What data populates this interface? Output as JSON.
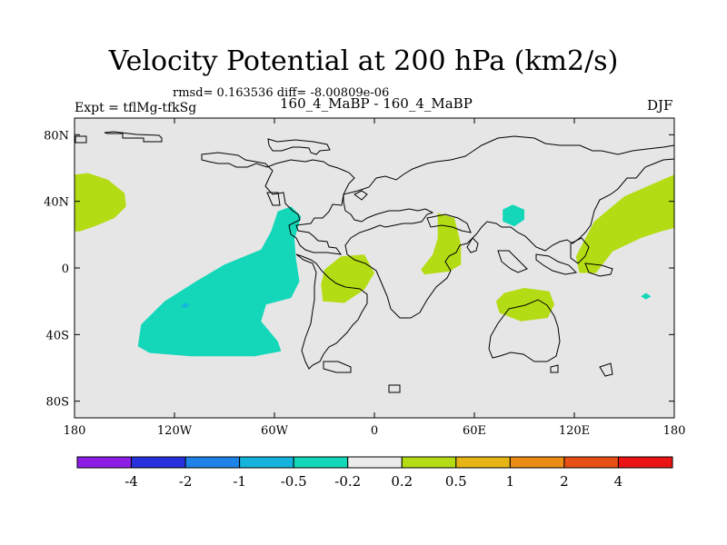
{
  "chart_data": {
    "type": "heatmap",
    "title": "Velocity Potential at 200 hPa (km2/s)",
    "stats_line": "rmsd= 0.163536 diff= -8.00809e-06",
    "left_label": "Expt = tflMg-tfkSg",
    "center_label": "160_4_MaBP - 160_4_MaBP",
    "right_label": "DJF",
    "xlim": [
      -180,
      180
    ],
    "ylim": [
      -90,
      90
    ],
    "x_ticks": [
      {
        "value": -180,
        "label": "180"
      },
      {
        "value": -120,
        "label": "120W"
      },
      {
        "value": -60,
        "label": "60W"
      },
      {
        "value": 0,
        "label": "0"
      },
      {
        "value": 60,
        "label": "60E"
      },
      {
        "value": 120,
        "label": "120E"
      },
      {
        "value": 180,
        "label": "180"
      }
    ],
    "y_ticks": [
      {
        "value": 80,
        "label": "80N"
      },
      {
        "value": 40,
        "label": "40N"
      },
      {
        "value": 0,
        "label": "0"
      },
      {
        "value": -40,
        "label": "40S"
      },
      {
        "value": -80,
        "label": "80S"
      }
    ],
    "background_color": "#e6e6e6",
    "colorbar": {
      "colors": [
        "#8c1ee6",
        "#2832dc",
        "#1e82e6",
        "#14b4dc",
        "#14d7b9",
        "#ebebeb",
        "#b4dc14",
        "#e6b414",
        "#eb8c14",
        "#e65014",
        "#eb1414"
      ],
      "labels": [
        "-4",
        "-2",
        "-1",
        "-0.5",
        "-0.2",
        "0.2",
        "0.5",
        "1",
        "2",
        "4"
      ]
    },
    "regions": [
      {
        "name": "positive-region-north-pacific-west",
        "level": "0.2 to 0.5",
        "color": "#b4dc14",
        "polygon": [
          [
            -180,
            56
          ],
          [
            -172,
            57
          ],
          [
            -160,
            53
          ],
          [
            -150,
            45
          ],
          [
            -149,
            37
          ],
          [
            -156,
            30
          ],
          [
            -168,
            25
          ],
          [
            -177,
            22
          ],
          [
            -180,
            22
          ]
        ]
      },
      {
        "name": "negative-region-south-pacific",
        "level": "-0.5 to -0.2",
        "color": "#14d7b9",
        "polygon": [
          [
            -58,
            34
          ],
          [
            -50,
            37
          ],
          [
            -44,
            31
          ],
          [
            -48,
            17
          ],
          [
            -47,
            5
          ],
          [
            -45,
            -8
          ],
          [
            -50,
            -18
          ],
          [
            -65,
            -22
          ],
          [
            -68,
            -32
          ],
          [
            -58,
            -44
          ],
          [
            -56,
            -50
          ],
          [
            -72,
            -53
          ],
          [
            -110,
            -53
          ],
          [
            -135,
            -51
          ],
          [
            -142,
            -47
          ],
          [
            -140,
            -34
          ],
          [
            -126,
            -20
          ],
          [
            -107,
            -8
          ],
          [
            -90,
            2
          ],
          [
            -68,
            11
          ],
          [
            -62,
            22
          ]
        ]
      },
      {
        "name": "positive-region-tropical-atlantic",
        "level": "0.2 to 0.5",
        "color": "#b4dc14",
        "polygon": [
          [
            -30,
            -1
          ],
          [
            -20,
            7
          ],
          [
            -6,
            8
          ],
          [
            0,
            -3
          ],
          [
            -6,
            -13
          ],
          [
            -18,
            -21
          ],
          [
            -31,
            -20
          ],
          [
            -32,
            -10
          ]
        ]
      },
      {
        "name": "positive-region-east-africa",
        "level": "0.2 to 0.5",
        "color": "#b4dc14",
        "polygon": [
          [
            38,
            33
          ],
          [
            48,
            30
          ],
          [
            52,
            14
          ],
          [
            52,
            2
          ],
          [
            45,
            -2
          ],
          [
            30,
            -4
          ],
          [
            28,
            -1
          ],
          [
            35,
            8
          ],
          [
            38,
            18
          ],
          [
            38,
            28
          ]
        ]
      },
      {
        "name": "negative-region-central-asia",
        "level": "-0.5 to -0.2",
        "color": "#14d7b9",
        "polygon": [
          [
            77,
            35
          ],
          [
            83,
            38
          ],
          [
            90,
            35
          ],
          [
            90,
            29
          ],
          [
            84,
            25
          ],
          [
            77,
            28
          ]
        ]
      },
      {
        "name": "positive-region-indian-ocean",
        "level": "0.2 to 0.5",
        "color": "#b4dc14",
        "polygon": [
          [
            78,
            -15
          ],
          [
            90,
            -12
          ],
          [
            105,
            -14
          ],
          [
            108,
            -22
          ],
          [
            104,
            -30
          ],
          [
            88,
            -32
          ],
          [
            75,
            -27
          ],
          [
            73,
            -20
          ]
        ]
      },
      {
        "name": "positive-region-north-pacific-east",
        "level": "0.2 to 0.5",
        "color": "#b4dc14",
        "polygon": [
          [
            180,
            56
          ],
          [
            173,
            53
          ],
          [
            150,
            43
          ],
          [
            132,
            28
          ],
          [
            121,
            7
          ],
          [
            123,
            -3
          ],
          [
            133,
            -3
          ],
          [
            143,
            10
          ],
          [
            160,
            18
          ],
          [
            172,
            22
          ],
          [
            180,
            24
          ]
        ]
      },
      {
        "name": "negative-spot-west-pacific",
        "level": "-0.5 to -0.2",
        "color": "#14d7b9",
        "polygon": [
          [
            163,
            -15
          ],
          [
            166,
            -17
          ],
          [
            163,
            -19
          ],
          [
            160,
            -17
          ]
        ]
      },
      {
        "name": "negative-spot-south-pacific",
        "level": "-1 to -0.5",
        "color": "#14b4dc",
        "polygon": [
          [
            -114,
            -21
          ],
          [
            -111,
            -22
          ],
          [
            -113,
            -24
          ],
          [
            -116,
            -23
          ]
        ]
      }
    ]
  }
}
